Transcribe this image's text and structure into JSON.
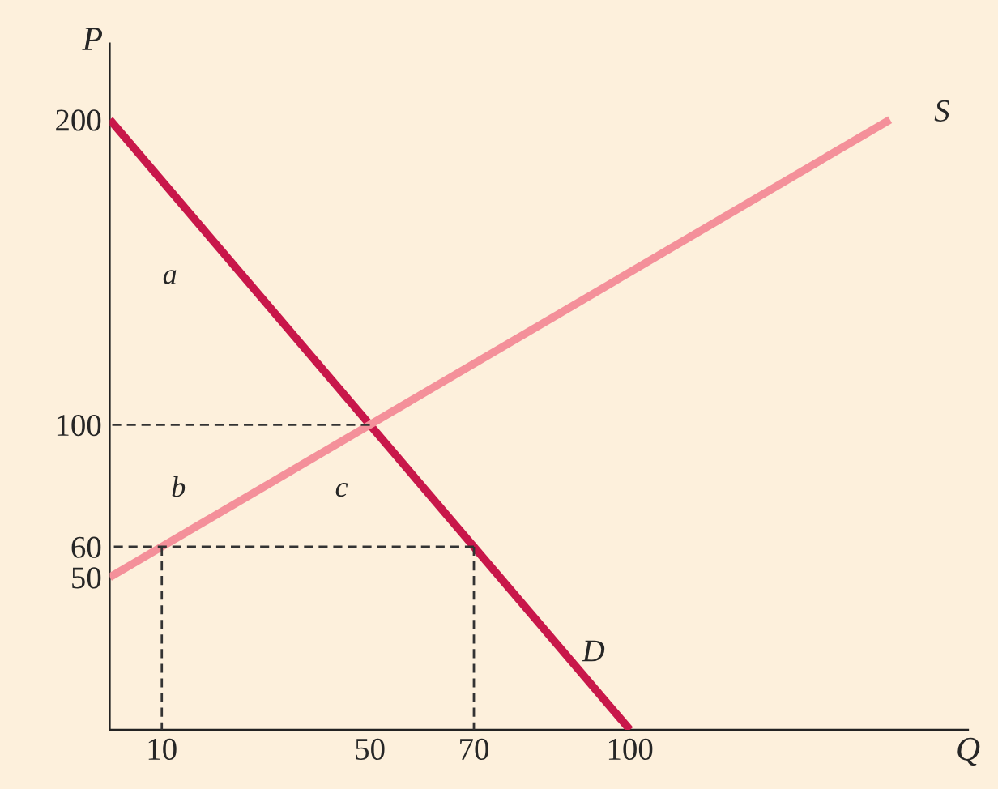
{
  "chart_data": {
    "type": "line",
    "xlabel": "Q",
    "ylabel": "P",
    "series": [
      {
        "name": "D",
        "color": "#c8174a",
        "x": [
          0,
          100
        ],
        "values": [
          200,
          0
        ]
      },
      {
        "name": "S",
        "color": "#f4909a",
        "x": [
          0,
          150
        ],
        "values": [
          50,
          200
        ]
      },
      {
        "color": "#333333",
        "line_style": "dashed",
        "x": [
          0,
          50
        ],
        "values": [
          100,
          100
        ]
      },
      {
        "color": "#333333",
        "line_style": "dashed",
        "x": [
          0,
          70
        ],
        "values": [
          60,
          60
        ]
      },
      {
        "color": "#333333",
        "line_style": "dashed",
        "x": [
          10,
          10
        ],
        "values": [
          0,
          60
        ]
      },
      {
        "color": "#333333",
        "line_style": "dashed",
        "x": [
          70,
          70
        ],
        "values": [
          0,
          60
        ]
      }
    ],
    "annotations": [
      "a",
      "b",
      "c"
    ],
    "xlim": [
      0,
      165
    ],
    "ylim": [
      0,
      225
    ],
    "xticks": [
      10,
      50,
      70,
      100
    ],
    "yticks": [
      50,
      60,
      100,
      200
    ],
    "grid": false,
    "legend": false
  }
}
